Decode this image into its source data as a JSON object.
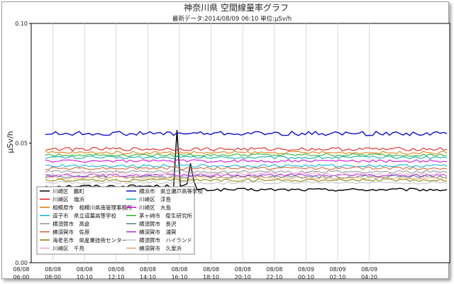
{
  "chart_data": {
    "type": "line",
    "title": "神奈川県 空間線量率グラフ",
    "subtitle": "最新データ:2014/08/09 06:10 単位:μSv/h",
    "ylabel": "μSv/h",
    "xlabel": "",
    "ylim": [
      0.0,
      0.1
    ],
    "yticks": [
      "0.00",
      "0.05",
      "0.10"
    ],
    "grid": "vertical",
    "legend_position": "bottom-left",
    "x_ticks": [
      [
        "08/08",
        "06:00"
      ],
      [
        "08/08",
        "08:00"
      ],
      [
        "08/08",
        "10:10"
      ],
      [
        "08/08",
        "12:10"
      ],
      [
        "08/08",
        "14:10"
      ],
      [
        "08/08",
        "16:10"
      ],
      [
        "08/08",
        "18:10"
      ],
      [
        "08/08",
        "20:10"
      ],
      [
        "08/08",
        "22:10"
      ],
      [
        "08/09",
        "00:10"
      ],
      [
        "08/09",
        "02:10"
      ],
      [
        "08/09",
        "04:20"
      ]
    ],
    "series": [
      {
        "name": "川崎区　鵬町",
        "color": "#000000",
        "base": 0.032,
        "noise": 0.0006,
        "spikes": [
          [
            39,
            0.0555
          ],
          [
            40,
            0.032
          ],
          [
            42,
            0.033
          ],
          [
            43,
            0.0415
          ],
          [
            44,
            0.034
          ],
          [
            45,
            0.0305
          ]
        ],
        "baseAfter": [
          45,
          0.0305
        ]
      },
      {
        "name": "横浜市　県立瀬戸高等学校",
        "color": "#1010c8",
        "base": 0.054,
        "noise": 0.0009
      },
      {
        "name": "川崎区　塩浜",
        "color": "#e01010",
        "base": 0.0475,
        "noise": 0.0007
      },
      {
        "name": "川崎区　浮島",
        "color": "#00a8a8",
        "base": 0.044,
        "noise": 0.0006
      },
      {
        "name": "相模原市　相模川県南管理事務所",
        "color": "#e07800",
        "base": 0.046,
        "noise": 0.0006
      },
      {
        "name": "川崎区　大島",
        "color": "#d000d0",
        "base": 0.0425,
        "noise": 0.0006
      },
      {
        "name": "逗子市　県立逗葉高等学校",
        "color": "#00b0e0",
        "base": 0.0405,
        "noise": 0.0006
      },
      {
        "name": "茅ヶ崎市　衛生研究所",
        "color": "#20b020",
        "base": 0.045,
        "noise": 0.0006
      },
      {
        "name": "横須賀市　高倉",
        "color": "#909090",
        "base": 0.038,
        "noise": 0.0006
      },
      {
        "name": "横須賀市　長沢",
        "color": "#508080",
        "base": 0.036,
        "noise": 0.0006
      },
      {
        "name": "横須賀市　佐原",
        "color": "#d06030",
        "base": 0.0395,
        "noise": 0.0006
      },
      {
        "name": "横須賀市　浦賀",
        "color": "#a030e0",
        "base": 0.0365,
        "noise": 0.0006
      },
      {
        "name": "海老名市　県産業技術センター",
        "color": "#808000",
        "base": 0.0345,
        "noise": 0.0006
      },
      {
        "name": "横須賀市　ハイランド",
        "color": "#c0c0c0",
        "base": 0.0335,
        "noise": 0.0006
      },
      {
        "name": "川崎区　千鳥",
        "color": "#f0a0d0",
        "base": 0.037,
        "noise": 0.0006
      },
      {
        "name": "横須賀市　久里浜",
        "color": "#f0a070",
        "base": 0.0355,
        "noise": 0.0006
      }
    ]
  }
}
